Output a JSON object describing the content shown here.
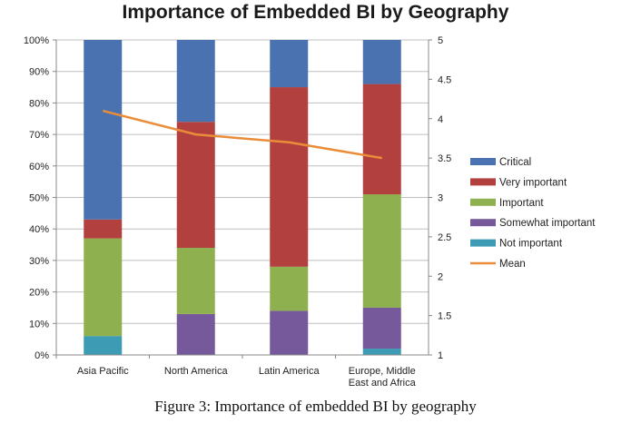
{
  "title": "Importance of Embedded BI by Geography",
  "caption": "Figure 3: Importance of embedded BI by geography",
  "colors": {
    "Critical": "#4a72b0",
    "Very important": "#b2403e",
    "Important": "#8fb04e",
    "Somewhat important": "#75599a",
    "Not important": "#3d9bb4",
    "Mean": "#e98d3a"
  },
  "chart_data": {
    "type": "bar",
    "stacked": true,
    "categories": [
      [
        "Asia Pacific"
      ],
      [
        "North America"
      ],
      [
        "Latin America"
      ],
      [
        "Europe, Middle",
        "East and Africa"
      ]
    ],
    "series": [
      {
        "name": "Not important",
        "values": [
          6,
          0,
          0,
          2
        ]
      },
      {
        "name": "Somewhat important",
        "values": [
          0,
          13,
          14,
          13
        ]
      },
      {
        "name": "Important",
        "values": [
          31,
          21,
          14,
          36
        ]
      },
      {
        "name": "Very important",
        "values": [
          6,
          40,
          57,
          35
        ]
      },
      {
        "name": "Critical",
        "values": [
          57,
          26,
          15,
          14
        ]
      }
    ],
    "line_series": {
      "name": "Mean",
      "values": [
        4.1,
        3.8,
        3.7,
        3.5
      ],
      "axis": "right"
    },
    "ylim_left": [
      0,
      100
    ],
    "ylim_right": [
      1,
      5
    ],
    "y_ticks_left": [
      "0%",
      "10%",
      "20%",
      "30%",
      "40%",
      "50%",
      "60%",
      "70%",
      "80%",
      "90%",
      "100%"
    ],
    "y_ticks_right": [
      "1",
      "1.5",
      "2",
      "2.5",
      "3",
      "3.5",
      "4",
      "4.5",
      "5"
    ],
    "legend": [
      "Critical",
      "Very important",
      "Important",
      "Somewhat important",
      "Not important",
      "Mean"
    ],
    "legend_position": "right",
    "grid": true
  }
}
